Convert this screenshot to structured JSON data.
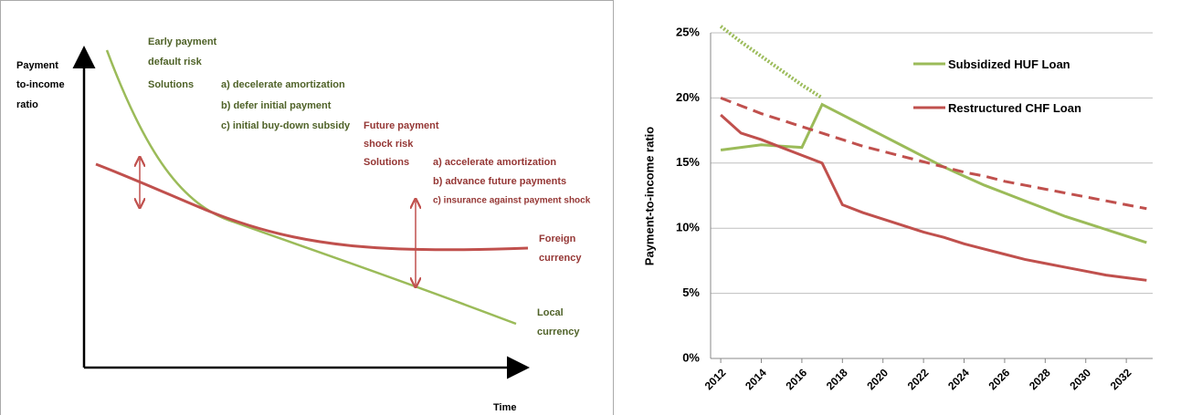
{
  "diagram": {
    "y_axis_label": [
      "Payment",
      "to-income",
      "ratio"
    ],
    "x_axis_label": "Time",
    "early_risk": {
      "title": [
        "Early payment",
        "default risk"
      ],
      "solutions_label": "Solutions",
      "solutions": [
        "a) decelerate amortization",
        "b) defer initial payment",
        "c) initial buy-down subsidy"
      ]
    },
    "future_risk": {
      "title": [
        "Future payment",
        "shock risk"
      ],
      "solutions_label": "Solutions",
      "solutions": [
        "a) accelerate amortization",
        "b) advance future payments",
        "c) insurance against payment shock"
      ]
    },
    "foreign_label": [
      "Foreign",
      "currency"
    ],
    "local_label": [
      "Local",
      "currency"
    ]
  },
  "chart_data": {
    "type": "line",
    "y_label": "Payment-to-income ratio",
    "x": [
      2012,
      2013,
      2014,
      2015,
      2016,
      2017,
      2018,
      2019,
      2020,
      2021,
      2022,
      2023,
      2024,
      2025,
      2026,
      2027,
      2028,
      2029,
      2030,
      2031,
      2032,
      2033
    ],
    "xlim": [
      2011.5,
      2033.3
    ],
    "xticks": [
      2012,
      2014,
      2016,
      2018,
      2020,
      2022,
      2024,
      2026,
      2028,
      2030,
      2032
    ],
    "ylim": [
      0,
      25
    ],
    "yticks": [
      {
        "value": 0,
        "label": "0%"
      },
      {
        "value": 5,
        "label": "5%"
      },
      {
        "value": 10,
        "label": "10%"
      },
      {
        "value": 15,
        "label": "15%"
      },
      {
        "value": 20,
        "label": "20%"
      },
      {
        "value": 25,
        "label": "25%"
      }
    ],
    "grid": true,
    "series": [
      {
        "name": "Subsidized HUF Loan",
        "color": "#9bbb59",
        "style": "solid",
        "values": [
          16.0,
          16.2,
          16.4,
          16.3,
          16.2,
          19.5,
          18.7,
          17.9,
          17.1,
          16.3,
          15.5,
          14.7,
          14.0,
          13.3,
          12.7,
          12.1,
          11.5,
          10.9,
          10.4,
          9.9,
          9.4,
          8.9
        ]
      },
      {
        "color": "#9bbb59",
        "style": "dotted",
        "values": [
          25.5,
          24.3,
          23.2,
          22.1,
          21.0,
          20.0,
          null,
          null,
          null,
          null,
          null,
          null,
          null,
          null,
          null,
          null,
          null,
          null,
          null,
          null,
          null,
          null
        ]
      },
      {
        "name": "Restructured CHF Loan",
        "color": "#c0504d",
        "style": "solid",
        "values": [
          18.7,
          17.3,
          16.8,
          16.2,
          15.6,
          15.0,
          11.8,
          11.2,
          10.7,
          10.2,
          9.7,
          9.3,
          8.8,
          8.4,
          8.0,
          7.6,
          7.3,
          7.0,
          6.7,
          6.4,
          6.2,
          6.0
        ]
      },
      {
        "color": "#c0504d",
        "style": "dashed",
        "values": [
          20.0,
          19.4,
          18.8,
          18.3,
          17.8,
          17.3,
          16.8,
          16.3,
          15.9,
          15.5,
          15.1,
          14.7,
          14.3,
          14.0,
          13.6,
          13.3,
          13.0,
          12.7,
          12.4,
          12.1,
          11.8,
          11.5
        ]
      }
    ]
  }
}
